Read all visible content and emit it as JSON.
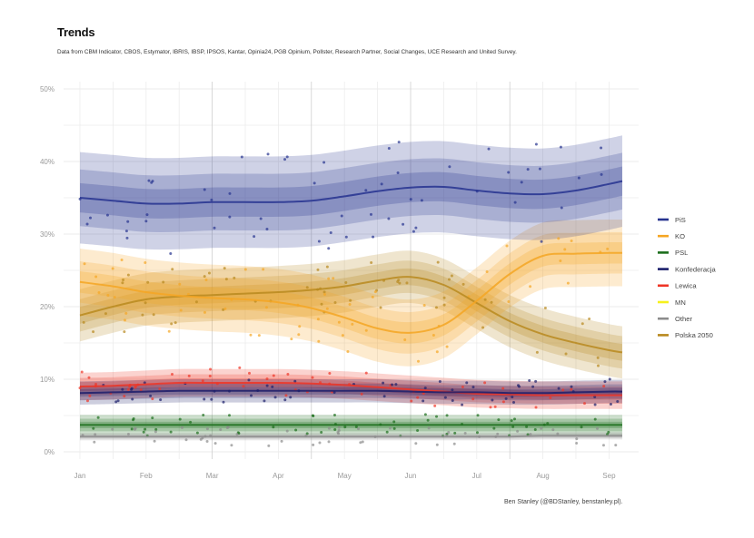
{
  "chart_data": {
    "type": "line",
    "title": "Trends",
    "subtitle": "Data from CBM Indicator, CBOS, Estymator, IBRIS, IBSP, IPSOS, Kantar, Opinia24, PGB Opinium, Pollster, Research Partner, Social Changes, UCE Research and United Survey.",
    "caption": "Ben Stanley (@BDStanley, benstanley.pl).",
    "xlabel": "",
    "ylabel": "",
    "x_ticks": [
      "Jan",
      "Feb",
      "Mar",
      "Apr",
      "May",
      "Jun",
      "Jul",
      "Aug",
      "Sep"
    ],
    "y_ticks": [
      "0%",
      "10%",
      "20%",
      "30%",
      "40%",
      "50%"
    ],
    "ylim": [
      0,
      50
    ],
    "x_range_months": [
      0,
      8.2
    ],
    "grid": true,
    "legend_position": "right",
    "x": [
      0.0,
      0.5,
      1.0,
      1.5,
      2.0,
      2.5,
      3.0,
      3.5,
      4.0,
      4.5,
      5.0,
      5.5,
      6.0,
      6.5,
      7.0,
      7.5,
      8.0,
      8.2
    ],
    "series": [
      {
        "name": "PiS",
        "color": "#26338f",
        "values": [
          35.0,
          34.6,
          34.2,
          34.2,
          34.4,
          34.4,
          34.4,
          34.6,
          35.2,
          35.9,
          36.4,
          36.5,
          36.0,
          35.6,
          35.5,
          36.0,
          36.9,
          37.3
        ],
        "band": 6.3
      },
      {
        "name": "KO",
        "color": "#f5a623",
        "values": [
          23.4,
          22.8,
          22.0,
          21.5,
          21.2,
          21.0,
          20.6,
          19.8,
          18.5,
          17.0,
          16.4,
          17.5,
          20.8,
          24.5,
          27.0,
          27.3,
          27.4,
          27.4
        ],
        "band": 4.6
      },
      {
        "name": "PSL",
        "color": "#1b6e1b",
        "values": [
          3.7,
          3.7,
          3.7,
          3.7,
          3.7,
          3.7,
          3.7,
          3.7,
          3.7,
          3.7,
          3.7,
          3.7,
          3.7,
          3.7,
          3.7,
          3.7,
          3.7,
          3.7
        ],
        "band": 1.4
      },
      {
        "name": "Konfederacja",
        "color": "#1c1f6b",
        "values": [
          8.1,
          8.2,
          8.3,
          8.4,
          8.4,
          8.4,
          8.4,
          8.4,
          8.4,
          8.4,
          8.3,
          8.2,
          8.2,
          8.1,
          8.1,
          8.2,
          8.3,
          8.3
        ],
        "band": 1.6
      },
      {
        "name": "Lewica",
        "color": "#ef3526",
        "values": [
          9.0,
          9.1,
          9.3,
          9.5,
          9.5,
          9.5,
          9.5,
          9.4,
          9.2,
          8.9,
          8.6,
          8.3,
          8.0,
          7.9,
          7.8,
          7.8,
          7.8,
          7.8
        ],
        "band": 1.9
      },
      {
        "name": "MN",
        "color": "#f6f11c",
        "values": [],
        "band": 0
      },
      {
        "name": "Other",
        "color": "#8c8c8c",
        "values": [
          2.1,
          2.1,
          2.1,
          2.1,
          2.1,
          2.1,
          2.1,
          2.1,
          2.1,
          2.1,
          2.1,
          2.1,
          2.1,
          2.1,
          2.2,
          2.2,
          2.2,
          2.2
        ],
        "band": 0.5
      },
      {
        "name": "Polska 2050",
        "color": "#b8891e",
        "values": [
          18.8,
          20.0,
          21.0,
          21.4,
          21.6,
          21.8,
          22.0,
          22.3,
          22.8,
          23.6,
          24.1,
          23.0,
          20.5,
          18.0,
          16.2,
          15.0,
          14.0,
          13.7
        ],
        "band": 3.6
      }
    ]
  }
}
